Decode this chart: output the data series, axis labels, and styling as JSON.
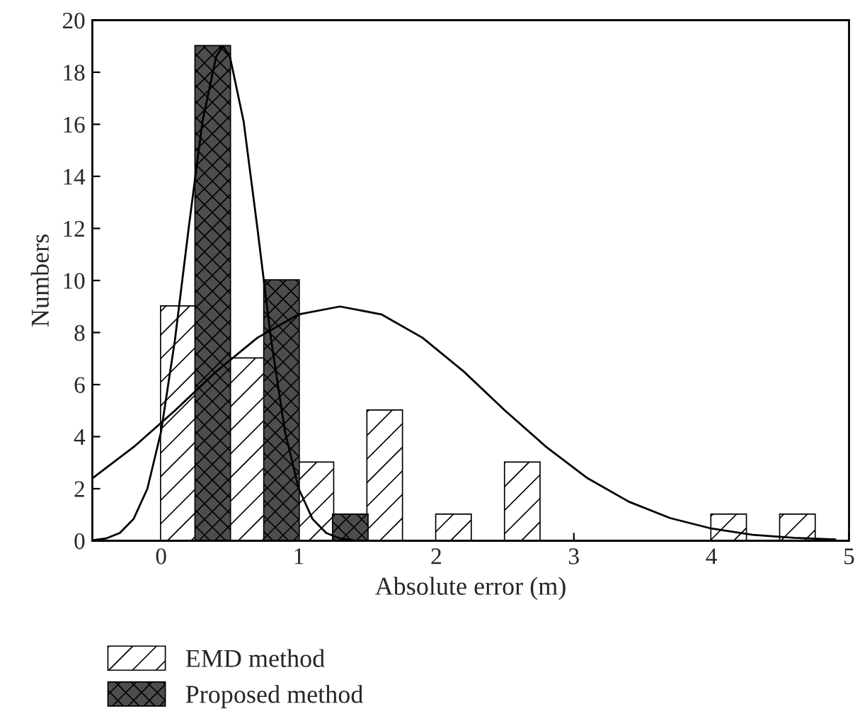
{
  "chart_data": {
    "type": "bar",
    "xlabel": "Absolute error (m)",
    "ylabel": "Numbers",
    "xlim": [
      -0.5,
      5
    ],
    "xticks": [
      0,
      1,
      2,
      3,
      4,
      5
    ],
    "ylim": [
      0,
      20
    ],
    "yticks": [
      0,
      2,
      4,
      6,
      8,
      10,
      12,
      14,
      16,
      18,
      20
    ],
    "grid": false,
    "legend": "bottom left",
    "series": [
      {
        "name": "EMD method",
        "color": "#ffffff",
        "x": [
          0.125,
          0.625,
          1.125,
          1.625,
          2.125,
          2.625,
          4.125,
          4.625
        ],
        "values": [
          9,
          7,
          3,
          5,
          1,
          3,
          1,
          1
        ]
      },
      {
        "name": "Proposed method",
        "color": "#4d4d4d",
        "x": [
          0.375,
          0.875,
          1.375
        ],
        "values": [
          19,
          10,
          1
        ]
      },
      {
        "type": "line",
        "color": "#000000",
        "x": [
          -0.5,
          -0.4,
          -0.3,
          -0.2,
          -0.1,
          0,
          0.1,
          0.2,
          0.3,
          0.4,
          0.45,
          0.5,
          0.6,
          0.7,
          0.8,
          0.9,
          1.0,
          1.1,
          1.2,
          1.3,
          1.4
        ],
        "values": [
          0.02,
          0.09,
          0.3,
          0.84,
          2.0,
          4.2,
          7.7,
          12.0,
          16.1,
          18.6,
          19,
          18.6,
          16.1,
          12.0,
          7.7,
          4.2,
          2.0,
          0.84,
          0.3,
          0.09,
          0.02
        ]
      },
      {
        "type": "line",
        "color": "#000000",
        "x": [
          -0.5,
          -0.2,
          0.1,
          0.4,
          0.7,
          1.0,
          1.3,
          1.6,
          1.9,
          2.2,
          2.5,
          2.8,
          3.1,
          3.4,
          3.7,
          4.0,
          4.3,
          4.6,
          4.9
        ],
        "values": [
          2.4,
          3.6,
          5.0,
          6.5,
          7.8,
          8.7,
          9,
          8.7,
          7.8,
          6.5,
          5.0,
          3.6,
          2.4,
          1.5,
          0.87,
          0.47,
          0.23,
          0.11,
          0.05
        ]
      }
    ]
  }
}
